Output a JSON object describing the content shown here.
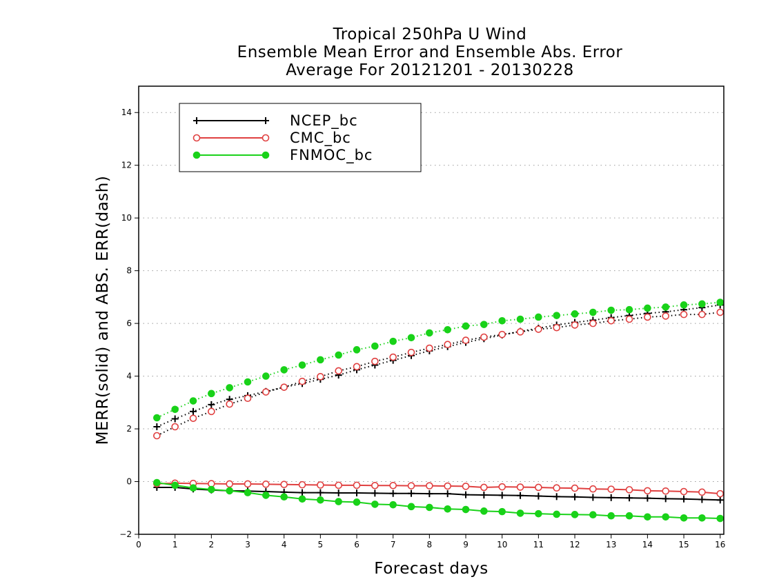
{
  "chart_data": {
    "type": "line",
    "title": [
      "Tropical 250hPa U Wind",
      "Ensemble Mean Error and Ensemble Abs. Error",
      "Average For 20121201 - 20130228"
    ],
    "xlabel": "Forecast days",
    "ylabel": "MERR(solid) and ABS. ERR(dash)",
    "xlim": [
      0,
      16.1
    ],
    "ylim": [
      -2,
      15
    ],
    "xticks": [
      0,
      1,
      2,
      3,
      4,
      5,
      6,
      7,
      8,
      9,
      10,
      11,
      12,
      13,
      14,
      15,
      16
    ],
    "yticks": [
      -2,
      0,
      2,
      4,
      6,
      8,
      10,
      12,
      14
    ],
    "grid": "horizontal dotted",
    "legend_position": "top-left",
    "x": [
      0.5,
      1,
      1.5,
      2,
      2.5,
      3,
      3.5,
      4,
      4.5,
      5,
      5.5,
      6,
      6.5,
      7,
      7.5,
      8,
      8.5,
      9,
      9.5,
      10,
      10.5,
      11,
      11.5,
      12,
      12.5,
      13,
      13.5,
      14,
      14.5,
      15,
      15.5,
      16
    ],
    "series": [
      {
        "name": "NCEP_bc",
        "color": "#000000",
        "marker": "plus",
        "merr": [
          -0.22,
          -0.22,
          -0.28,
          -0.32,
          -0.35,
          -0.36,
          -0.38,
          -0.4,
          -0.42,
          -0.42,
          -0.43,
          -0.43,
          -0.44,
          -0.45,
          -0.45,
          -0.46,
          -0.46,
          -0.5,
          -0.51,
          -0.52,
          -0.53,
          -0.55,
          -0.57,
          -0.58,
          -0.6,
          -0.61,
          -0.62,
          -0.63,
          -0.65,
          -0.66,
          -0.68,
          -0.7
        ],
        "abs_err": [
          2.08,
          2.38,
          2.66,
          2.92,
          3.12,
          3.26,
          3.42,
          3.58,
          3.72,
          3.88,
          4.04,
          4.24,
          4.42,
          4.6,
          4.78,
          4.96,
          5.12,
          5.28,
          5.42,
          5.56,
          5.7,
          5.82,
          5.94,
          6.04,
          6.12,
          6.22,
          6.3,
          6.38,
          6.44,
          6.52,
          6.6,
          6.7
        ]
      },
      {
        "name": "CMC_bc",
        "color": "#e04040",
        "marker": "open-circle",
        "merr": [
          -0.08,
          -0.06,
          -0.07,
          -0.08,
          -0.09,
          -0.09,
          -0.1,
          -0.11,
          -0.12,
          -0.13,
          -0.14,
          -0.14,
          -0.15,
          -0.15,
          -0.16,
          -0.16,
          -0.17,
          -0.18,
          -0.22,
          -0.2,
          -0.21,
          -0.22,
          -0.24,
          -0.25,
          -0.28,
          -0.29,
          -0.31,
          -0.35,
          -0.36,
          -0.38,
          -0.4,
          -0.46
        ],
        "abs_err": [
          1.74,
          2.08,
          2.4,
          2.66,
          2.94,
          3.16,
          3.4,
          3.58,
          3.8,
          3.98,
          4.2,
          4.36,
          4.56,
          4.72,
          4.9,
          5.06,
          5.2,
          5.36,
          5.48,
          5.58,
          5.68,
          5.78,
          5.84,
          5.94,
          6.0,
          6.1,
          6.16,
          6.24,
          6.28,
          6.34,
          6.34,
          6.42
        ]
      },
      {
        "name": "FNMOC_bc",
        "color": "#19d219",
        "marker": "filled-circle",
        "merr": [
          -0.04,
          -0.14,
          -0.24,
          -0.3,
          -0.35,
          -0.42,
          -0.52,
          -0.58,
          -0.66,
          -0.7,
          -0.76,
          -0.78,
          -0.86,
          -0.88,
          -0.95,
          -0.98,
          -1.04,
          -1.06,
          -1.12,
          -1.14,
          -1.2,
          -1.22,
          -1.24,
          -1.25,
          -1.26,
          -1.3,
          -1.3,
          -1.34,
          -1.34,
          -1.38,
          -1.38,
          -1.4
        ],
        "abs_err": [
          2.42,
          2.74,
          3.06,
          3.34,
          3.56,
          3.78,
          4.0,
          4.24,
          4.42,
          4.62,
          4.8,
          5.0,
          5.14,
          5.32,
          5.46,
          5.64,
          5.76,
          5.9,
          5.96,
          6.1,
          6.16,
          6.24,
          6.3,
          6.36,
          6.42,
          6.5,
          6.52,
          6.58,
          6.62,
          6.7,
          6.74,
          6.8
        ]
      }
    ]
  }
}
